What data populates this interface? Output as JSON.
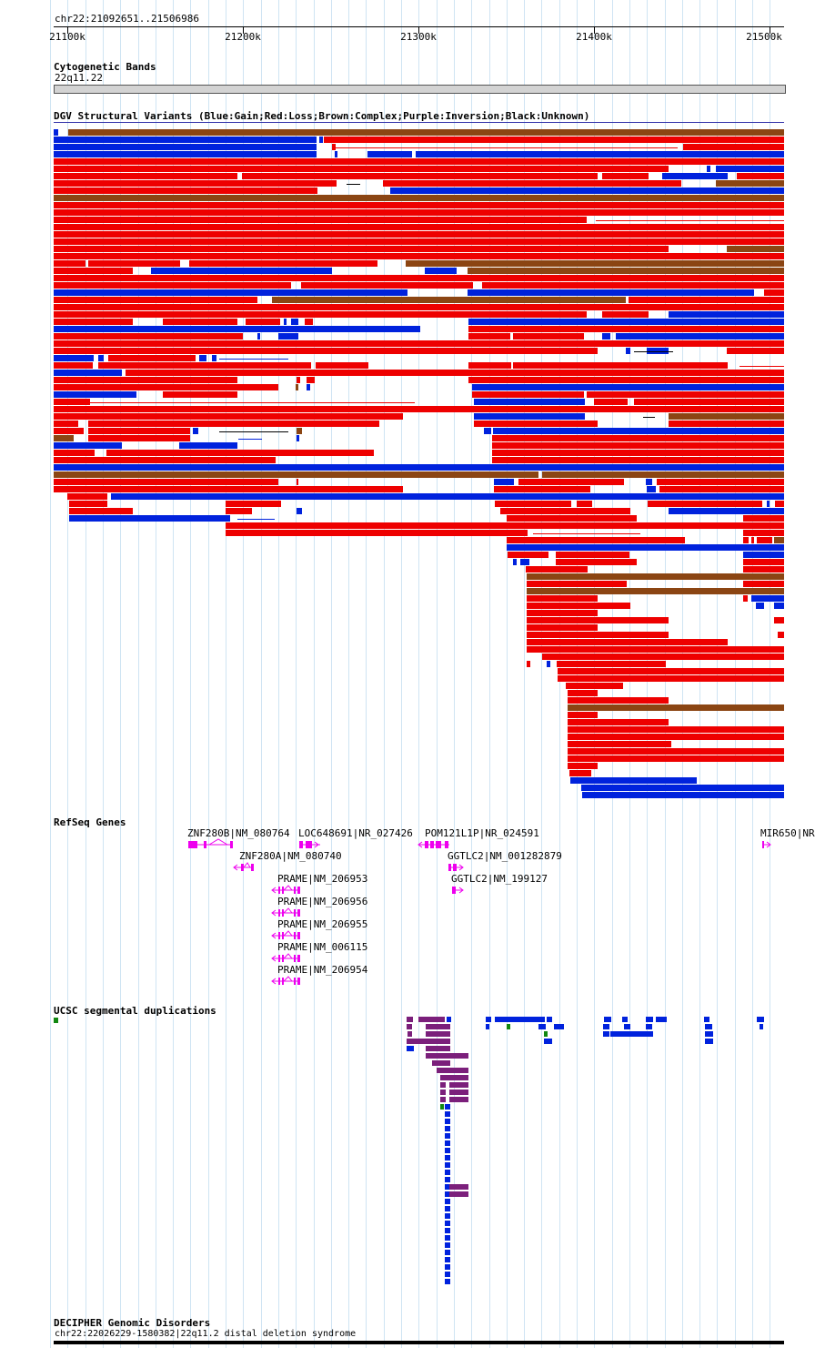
{
  "location": "chr22:21092651..21506986",
  "ruler": {
    "ticks": [
      "21100k",
      "21200k",
      "21300k",
      "21400k",
      "21500k"
    ]
  },
  "tracks": {
    "cytoband": {
      "title": "Cytogenetic Bands",
      "band": "22q11.22"
    },
    "dgv": {
      "title": "DGV Structural Variants (Blue:Gain;Red:Loss;Brown:Complex;Purple:Inversion;Black:Unknown)"
    },
    "refseq": {
      "title": "RefSeq Genes",
      "genes": [
        "ZNF280B|NM_080764",
        "LOC648691|NR_027426",
        "POM121L1P|NR_024591",
        "MIR650|NR",
        "ZNF280A|NM_080740",
        "GGTLC2|NM_001282879",
        "PRAME|NM_206953",
        "GGTLC2|NM_199127",
        "PRAME|NM_206956",
        "PRAME|NM_206955",
        "PRAME|NM_006115",
        "PRAME|NM_206954"
      ]
    },
    "segdup": {
      "title": "UCSC segmental duplications"
    },
    "decipher": {
      "title": "DECIPHER Genomic Disorders",
      "entry": "chr22:22026229-1580382|22q11.2 distal deletion syndrome"
    }
  },
  "colors": {
    "gain": "#0022dd",
    "loss": "#ee0000",
    "complex": "#8b4513",
    "gene": "#ee00ee",
    "segdup_purple": "#7b1f7b",
    "segdup_blue": "#0022dd",
    "segdup_green": "#118811",
    "gridline": "#cfe4f3"
  }
}
